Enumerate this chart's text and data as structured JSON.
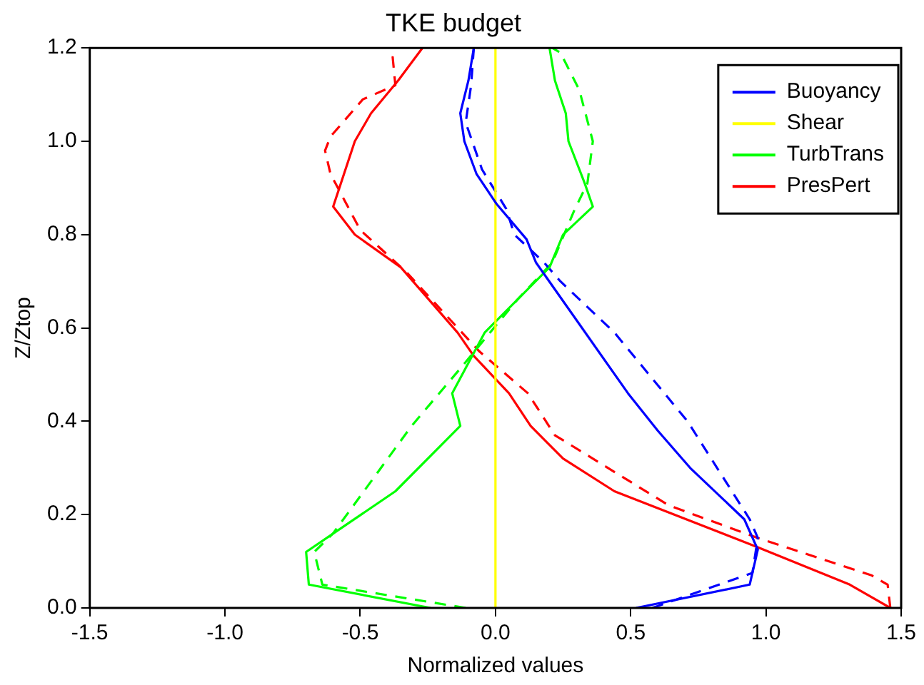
{
  "chart_data": {
    "type": "line",
    "title": "TKE budget",
    "xlabel": "Normalized values",
    "ylabel": "Z/Ztop",
    "xlim": [
      -1.5,
      1.5
    ],
    "xticks": [
      -1.5,
      {
        "value": -1,
        "label": "-1.0"
      },
      -0.5,
      {
        "value": 0,
        "label": "0.0"
      },
      0.5,
      {
        "value": 1,
        "label": "1.0"
      },
      1.5
    ],
    "ylim": [
      0,
      1.2
    ],
    "yticks": [
      {
        "value": 0,
        "label": "0.0"
      },
      0.2,
      0.4,
      0.6,
      0.8,
      {
        "value": 1,
        "label": "1.0"
      },
      1.2
    ],
    "grid": false,
    "legend": "top right",
    "marker": "none",
    "series": [
      {
        "name": "Buoyancy",
        "color": "#0000ff",
        "line_style": "solid",
        "x": [
          0.52,
          0.94,
          0.97,
          0.92,
          0.72,
          0.6,
          0.49,
          0.15,
          0.115,
          0.005,
          -0.07,
          -0.115,
          -0.13,
          -0.1,
          -0.08
        ],
        "values": [
          0,
          0.05,
          0.125,
          0.19,
          0.3,
          0.38,
          0.46,
          0.74,
          0.79,
          0.865,
          0.93,
          1.0,
          1.06,
          1.13,
          1.2
        ]
      },
      {
        "name": "Shear",
        "color": "#ffff00",
        "line_style": "solid",
        "x": [
          0,
          0
        ],
        "values": [
          0,
          1.2
        ]
      },
      {
        "name": "TurbTrans",
        "color": "#00ff00",
        "line_style": "solid",
        "x": [
          -0.24,
          -0.69,
          -0.7,
          -0.37,
          -0.13,
          -0.16,
          -0.04,
          0.2,
          0.25,
          0.36,
          0.33,
          0.27,
          0.26,
          0.22,
          0.2
        ],
        "values": [
          0,
          0.05,
          0.12,
          0.25,
          0.39,
          0.46,
          0.59,
          0.73,
          0.8,
          0.86,
          0.91,
          1.0,
          1.06,
          1.13,
          1.2
        ]
      },
      {
        "name": "PresPert",
        "color": "#ff0000",
        "line_style": "solid",
        "x": [
          1.46,
          1.31,
          0.97,
          0.44,
          0.25,
          0.13,
          0.05,
          -0.08,
          -0.14,
          -0.35,
          -0.52,
          -0.6,
          -0.52,
          -0.46,
          -0.36,
          -0.27
        ],
        "values": [
          0,
          0.05,
          0.13,
          0.25,
          0.32,
          0.39,
          0.46,
          0.54,
          0.59,
          0.73,
          0.8,
          0.86,
          1.0,
          1.06,
          1.13,
          1.2
        ]
      },
      {
        "color": "#0000ff",
        "line_style": "dashed",
        "x": [
          0.58,
          0.95,
          0.97,
          0.94,
          0.71,
          0.44,
          0.24,
          0.18,
          0.07,
          0.04,
          -0.05,
          -0.11,
          -0.09,
          -0.08
        ],
        "values": [
          0,
          0.075,
          0.15,
          0.19,
          0.4,
          0.59,
          0.7,
          0.74,
          0.8,
          0.855,
          0.94,
          1.04,
          1.12,
          1.2
        ]
      },
      {
        "color": "#00ff00",
        "line_style": "dashed",
        "x": [
          -0.11,
          -0.64,
          -0.67,
          -0.6,
          -0.31,
          -0.12,
          0.08,
          0.21,
          0.29,
          0.34,
          0.36,
          0.31,
          0.24,
          0.21
        ],
        "values": [
          0,
          0.05,
          0.12,
          0.16,
          0.39,
          0.52,
          0.66,
          0.74,
          0.85,
          0.91,
          1.0,
          1.11,
          1.19,
          1.2
        ]
      },
      {
        "color": "#ff0000",
        "line_style": "dashed",
        "x": [
          1.46,
          1.45,
          1.39,
          0.97,
          0.64,
          0.22,
          0.12,
          -0.06,
          -0.33,
          -0.5,
          -0.61,
          -0.63,
          -0.61,
          -0.49,
          -0.37,
          -0.38,
          -0.37
        ],
        "values": [
          0,
          0.05,
          0.07,
          0.15,
          0.22,
          0.37,
          0.46,
          0.55,
          0.72,
          0.81,
          0.93,
          0.98,
          1.01,
          1.09,
          1.12,
          1.18,
          1.2
        ]
      }
    ]
  }
}
